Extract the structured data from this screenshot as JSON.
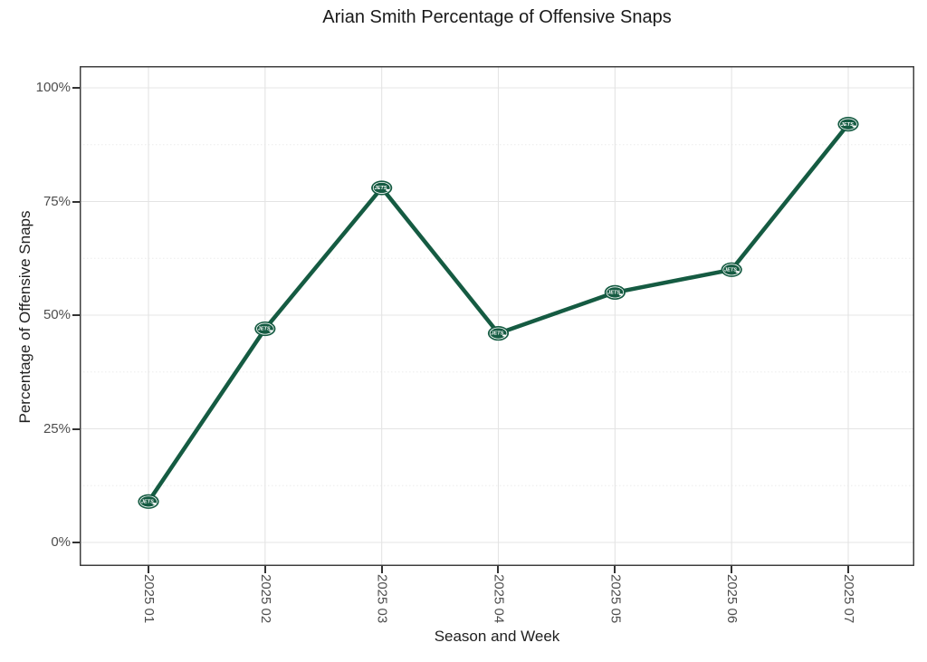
{
  "page": {
    "background": "#ffffff"
  },
  "chart_data": {
    "type": "line",
    "title": "Arian Smith Percentage of Offensive Snaps",
    "xlabel": "Season and Week",
    "ylabel": "Percentage of Offensive Snaps",
    "categories": [
      "2025 01",
      "2025 02",
      "2025 03",
      "2025 04",
      "2025 05",
      "2025 06",
      "2025 07"
    ],
    "series": [
      {
        "name": "Arian Smith",
        "values": [
          9,
          47,
          78,
          46,
          55,
          60,
          92
        ]
      }
    ],
    "y_tick_labels": [
      "0%",
      "25%",
      "50%",
      "75%",
      "100%"
    ],
    "y_tick_values": [
      0,
      25,
      50,
      75,
      100
    ],
    "y_minor_values": [
      12.5,
      37.5,
      62.5,
      87.5
    ],
    "ylim": [
      0,
      100
    ],
    "grid": true,
    "legend": "none",
    "marker": {
      "shape": "jets-logo-oval",
      "text": "JETS"
    },
    "colors": {
      "line": "#155B42",
      "marker_fill": "#155B42",
      "marker_text": "#ffffff",
      "grid_major": "#e4e4e4",
      "grid_minor": "#ececec",
      "panel_border": "#333333",
      "tick_label": "#4d4d4d",
      "axis_title": "#1f1f1f",
      "title": "#1a1a1a"
    }
  }
}
